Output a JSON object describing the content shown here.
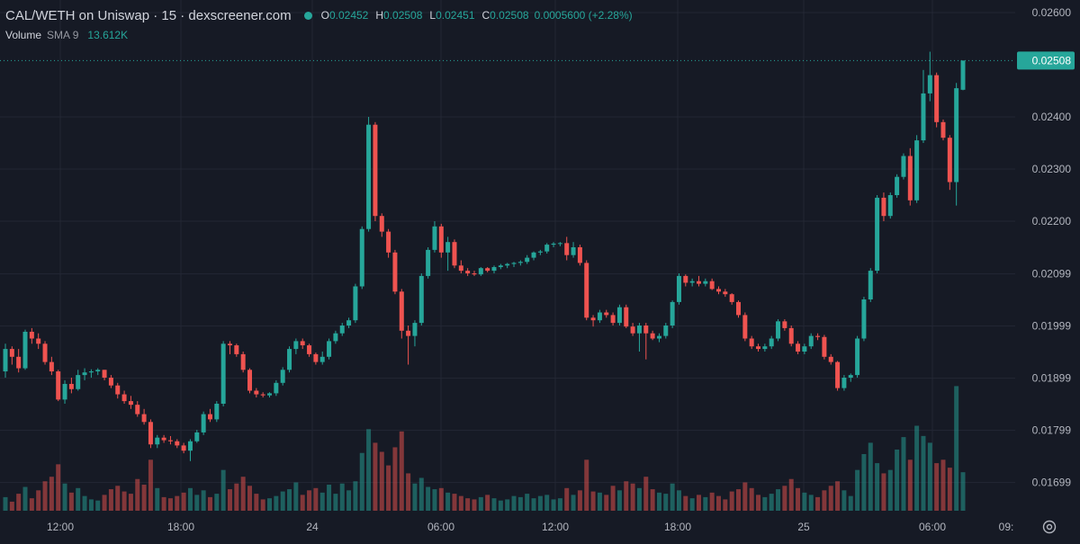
{
  "header": {
    "title": "CAL/WETH on Uniswap · 15 · dexscreener.com",
    "ohlc": {
      "o_label": "O",
      "o": "0.02452",
      "h_label": "H",
      "h": "0.02508",
      "l_label": "L",
      "l": "0.02451",
      "c_label": "C",
      "c": "0.02508",
      "change": "0.0005600 (+2.28%)"
    },
    "volume_label": "Volume",
    "sma_label": "SMA 9",
    "volume_value": "13.612K"
  },
  "colors": {
    "background": "#161a25",
    "up": "#26a69a",
    "down": "#ef5350",
    "grid": "#232734",
    "text": "#d1d4dc",
    "axis_text": "#b2b5be"
  },
  "chart_data": {
    "type": "candlestick",
    "price_axis": {
      "ticks": [
        "0.02600",
        "0.02400",
        "0.02300",
        "0.02200",
        "0.02099",
        "0.01999",
        "0.01899",
        "0.01799",
        "0.01699"
      ],
      "tick_values": [
        0.026,
        0.024,
        0.023,
        0.022,
        0.02099,
        0.01999,
        0.01899,
        0.01799,
        0.01699
      ],
      "last_price_label": "0.02508",
      "last_price": 0.02508
    },
    "time_axis": {
      "labels": [
        "12:00",
        "18:00",
        "24",
        "06:00",
        "12:00",
        "18:00",
        "25",
        "06:00",
        "09:"
      ]
    },
    "candles": [
      [
        0.01912,
        0.01965,
        0.019,
        0.01955,
        1.2
      ],
      [
        0.01955,
        0.0196,
        0.01925,
        0.0194,
        0.8
      ],
      [
        0.0194,
        0.01955,
        0.0191,
        0.01918,
        1.5
      ],
      [
        0.01918,
        0.01992,
        0.01915,
        0.01988,
        2.1
      ],
      [
        0.01988,
        0.01995,
        0.01965,
        0.01975,
        1.1
      ],
      [
        0.01975,
        0.01985,
        0.01955,
        0.01965,
        1.8
      ],
      [
        0.01965,
        0.0197,
        0.01925,
        0.0193,
        2.6
      ],
      [
        0.0193,
        0.0194,
        0.01905,
        0.01912,
        3.0
      ],
      [
        0.01912,
        0.01915,
        0.01855,
        0.01858,
        4.1
      ],
      [
        0.01858,
        0.01895,
        0.0185,
        0.01888,
        2.4
      ],
      [
        0.01888,
        0.019,
        0.0187,
        0.01878,
        1.6
      ],
      [
        0.01878,
        0.01915,
        0.01875,
        0.01905,
        2.0
      ],
      [
        0.01905,
        0.01918,
        0.01895,
        0.0191,
        1.3
      ],
      [
        0.0191,
        0.01916,
        0.019,
        0.01912,
        1.0
      ],
      [
        0.01912,
        0.01918,
        0.01905,
        0.01915,
        0.9
      ],
      [
        0.01915,
        0.01915,
        0.01895,
        0.019,
        1.4
      ],
      [
        0.019,
        0.01905,
        0.0188,
        0.01885,
        1.9
      ],
      [
        0.01885,
        0.0189,
        0.0186,
        0.01868,
        2.2
      ],
      [
        0.01868,
        0.01875,
        0.0185,
        0.01855,
        1.7
      ],
      [
        0.01855,
        0.01865,
        0.0184,
        0.01848,
        1.5
      ],
      [
        0.01848,
        0.01855,
        0.01825,
        0.0183,
        2.8
      ],
      [
        0.0183,
        0.0184,
        0.0181,
        0.01815,
        2.3
      ],
      [
        0.01815,
        0.0182,
        0.01765,
        0.01772,
        4.5
      ],
      [
        0.01772,
        0.0179,
        0.01765,
        0.01785,
        2.0
      ],
      [
        0.01785,
        0.0179,
        0.01775,
        0.0178,
        1.2
      ],
      [
        0.0178,
        0.01788,
        0.01772,
        0.01778,
        1.1
      ],
      [
        0.01778,
        0.01782,
        0.01765,
        0.0177,
        1.3
      ],
      [
        0.0177,
        0.01775,
        0.01755,
        0.0176,
        1.6
      ],
      [
        0.0176,
        0.01782,
        0.0174,
        0.01778,
        2.0
      ],
      [
        0.01778,
        0.018,
        0.01775,
        0.01795,
        1.4
      ],
      [
        0.01795,
        0.01835,
        0.0179,
        0.0183,
        1.8
      ],
      [
        0.0183,
        0.0184,
        0.01815,
        0.0182,
        1.2
      ],
      [
        0.0182,
        0.01855,
        0.01815,
        0.0185,
        1.5
      ],
      [
        0.0185,
        0.0197,
        0.01845,
        0.01965,
        3.6
      ],
      [
        0.01965,
        0.0197,
        0.01945,
        0.01962,
        1.9
      ],
      [
        0.01962,
        0.01965,
        0.0194,
        0.01945,
        2.4
      ],
      [
        0.01945,
        0.0195,
        0.0191,
        0.01915,
        3.0
      ],
      [
        0.01915,
        0.01918,
        0.0187,
        0.01875,
        2.2
      ],
      [
        0.01875,
        0.0188,
        0.01862,
        0.01868,
        1.5
      ],
      [
        0.01868,
        0.01872,
        0.01862,
        0.01866,
        1.0
      ],
      [
        0.01866,
        0.01872,
        0.01862,
        0.0187,
        1.1
      ],
      [
        0.0187,
        0.01895,
        0.01865,
        0.0189,
        1.3
      ],
      [
        0.0189,
        0.0192,
        0.01885,
        0.01915,
        1.7
      ],
      [
        0.01915,
        0.0196,
        0.0191,
        0.01955,
        1.9
      ],
      [
        0.01955,
        0.01975,
        0.01945,
        0.0197,
        2.5
      ],
      [
        0.0197,
        0.01975,
        0.01955,
        0.01962,
        1.4
      ],
      [
        0.01962,
        0.01965,
        0.0194,
        0.01945,
        1.8
      ],
      [
        0.01945,
        0.01948,
        0.01925,
        0.0193,
        2.0
      ],
      [
        0.0193,
        0.0195,
        0.01925,
        0.0194,
        1.6
      ],
      [
        0.0194,
        0.01975,
        0.01935,
        0.0197,
        2.3
      ],
      [
        0.0197,
        0.0199,
        0.01965,
        0.01985,
        1.5
      ],
      [
        0.01985,
        0.02005,
        0.0198,
        0.02,
        2.4
      ],
      [
        0.02,
        0.02015,
        0.01995,
        0.0201,
        1.8
      ],
      [
        0.0201,
        0.0208,
        0.02005,
        0.02075,
        2.6
      ],
      [
        0.02075,
        0.0219,
        0.0207,
        0.02185,
        5.1
      ],
      [
        0.02185,
        0.024,
        0.0218,
        0.02385,
        7.2
      ],
      [
        0.02385,
        0.0239,
        0.022,
        0.0221,
        6.0
      ],
      [
        0.0221,
        0.02215,
        0.0217,
        0.0218,
        5.2
      ],
      [
        0.0218,
        0.02185,
        0.0213,
        0.0214,
        4.0
      ],
      [
        0.0214,
        0.02145,
        0.0206,
        0.02065,
        5.6
      ],
      [
        0.02065,
        0.0207,
        0.01975,
        0.0199,
        7.0
      ],
      [
        0.0199,
        0.02,
        0.01925,
        0.0198,
        3.3
      ],
      [
        0.0198,
        0.0201,
        0.0196,
        0.02005,
        2.4
      ],
      [
        0.02005,
        0.021,
        0.02,
        0.02095,
        2.9
      ],
      [
        0.02095,
        0.0215,
        0.0209,
        0.02145,
        2.1
      ],
      [
        0.02145,
        0.022,
        0.0214,
        0.0219,
        1.9
      ],
      [
        0.0219,
        0.02195,
        0.0213,
        0.0214,
        2.0
      ],
      [
        0.0214,
        0.0217,
        0.02105,
        0.0216,
        1.6
      ],
      [
        0.0216,
        0.02165,
        0.0211,
        0.02115,
        1.5
      ],
      [
        0.02115,
        0.02125,
        0.021,
        0.02105,
        1.3
      ],
      [
        0.02105,
        0.0211,
        0.02095,
        0.021,
        1.1
      ],
      [
        0.021,
        0.02105,
        0.02095,
        0.02098,
        1.0
      ],
      [
        0.02098,
        0.02112,
        0.02095,
        0.0211,
        1.2
      ],
      [
        0.0211,
        0.02112,
        0.02102,
        0.02105,
        1.4
      ],
      [
        0.02105,
        0.02115,
        0.021,
        0.02112,
        1.1
      ],
      [
        0.02112,
        0.02118,
        0.02108,
        0.02115,
        0.9
      ],
      [
        0.02115,
        0.0212,
        0.0211,
        0.02118,
        1.0
      ],
      [
        0.02118,
        0.02122,
        0.02112,
        0.0212,
        1.3
      ],
      [
        0.0212,
        0.02125,
        0.02115,
        0.02122,
        1.2
      ],
      [
        0.02122,
        0.02135,
        0.02118,
        0.0213,
        1.5
      ],
      [
        0.0213,
        0.02142,
        0.02125,
        0.0214,
        1.1
      ],
      [
        0.0214,
        0.02145,
        0.02135,
        0.02142,
        1.3
      ],
      [
        0.02142,
        0.02158,
        0.02138,
        0.02155,
        1.4
      ],
      [
        0.02155,
        0.0216,
        0.0215,
        0.02157,
        1.0
      ],
      [
        0.02157,
        0.0216,
        0.02152,
        0.02158,
        1.1
      ],
      [
        0.02158,
        0.0217,
        0.02125,
        0.02135,
        2.0
      ],
      [
        0.02135,
        0.0216,
        0.0213,
        0.0215,
        1.4
      ],
      [
        0.0215,
        0.02155,
        0.02115,
        0.0212,
        1.8
      ],
      [
        0.0212,
        0.02125,
        0.0201,
        0.02015,
        4.5
      ],
      [
        0.02015,
        0.0202,
        0.01998,
        0.0201,
        1.7
      ],
      [
        0.0201,
        0.0203,
        0.02005,
        0.02025,
        1.6
      ],
      [
        0.02025,
        0.0203,
        0.02015,
        0.0202,
        1.4
      ],
      [
        0.0202,
        0.02025,
        0.02,
        0.02005,
        2.2
      ],
      [
        0.02005,
        0.0204,
        0.02,
        0.02035,
        1.8
      ],
      [
        0.02035,
        0.0204,
        0.01995,
        0.01998,
        2.6
      ],
      [
        0.01998,
        0.02005,
        0.0198,
        0.01985,
        2.4
      ],
      [
        0.01985,
        0.02005,
        0.0195,
        0.02,
        2.0
      ],
      [
        0.02,
        0.02005,
        0.01935,
        0.01985,
        3.0
      ],
      [
        0.01985,
        0.0199,
        0.01972,
        0.01975,
        1.9
      ],
      [
        0.01975,
        0.01985,
        0.01968,
        0.0198,
        1.6
      ],
      [
        0.0198,
        0.02005,
        0.01975,
        0.02,
        1.5
      ],
      [
        0.02,
        0.02048,
        0.01995,
        0.02045,
        2.4
      ],
      [
        0.02045,
        0.021,
        0.0204,
        0.02095,
        1.8
      ],
      [
        0.02095,
        0.02098,
        0.02075,
        0.02082,
        1.3
      ],
      [
        0.02082,
        0.0209,
        0.02075,
        0.02085,
        1.1
      ],
      [
        0.02085,
        0.02095,
        0.02075,
        0.0208,
        1.4
      ],
      [
        0.0208,
        0.0209,
        0.02075,
        0.02085,
        1.2
      ],
      [
        0.02085,
        0.0209,
        0.02068,
        0.0207,
        1.6
      ],
      [
        0.0207,
        0.02075,
        0.0206,
        0.02065,
        1.3
      ],
      [
        0.02065,
        0.0207,
        0.02055,
        0.0206,
        1.0
      ],
      [
        0.0206,
        0.02062,
        0.0204,
        0.02045,
        1.7
      ],
      [
        0.02045,
        0.02048,
        0.02015,
        0.0202,
        1.9
      ],
      [
        0.0202,
        0.02025,
        0.0197,
        0.01975,
        2.5
      ],
      [
        0.01975,
        0.0198,
        0.01955,
        0.0196,
        2.0
      ],
      [
        0.0196,
        0.01965,
        0.0195,
        0.01955,
        1.4
      ],
      [
        0.01955,
        0.01965,
        0.0195,
        0.0196,
        1.2
      ],
      [
        0.0196,
        0.0198,
        0.01955,
        0.01975,
        1.5
      ],
      [
        0.01975,
        0.02012,
        0.0197,
        0.02008,
        1.9
      ],
      [
        0.02008,
        0.02012,
        0.0199,
        0.01995,
        2.2
      ],
      [
        0.01995,
        0.02,
        0.0196,
        0.01965,
        2.8
      ],
      [
        0.01965,
        0.0197,
        0.01945,
        0.0195,
        2.0
      ],
      [
        0.0195,
        0.01965,
        0.01945,
        0.0196,
        1.6
      ],
      [
        0.0196,
        0.01985,
        0.01955,
        0.0198,
        1.4
      ],
      [
        0.0198,
        0.01985,
        0.01972,
        0.01978,
        1.2
      ],
      [
        0.01978,
        0.01982,
        0.01935,
        0.0194,
        1.8
      ],
      [
        0.0194,
        0.01945,
        0.01925,
        0.0193,
        2.2
      ],
      [
        0.0193,
        0.01932,
        0.01875,
        0.0188,
        2.6
      ],
      [
        0.0188,
        0.01905,
        0.01875,
        0.019,
        1.8
      ],
      [
        0.019,
        0.01908,
        0.01892,
        0.01905,
        1.3
      ],
      [
        0.01905,
        0.0198,
        0.019,
        0.01975,
        3.6
      ],
      [
        0.01975,
        0.02055,
        0.0197,
        0.0205,
        5.0
      ],
      [
        0.0205,
        0.0211,
        0.02045,
        0.02105,
        6.0
      ],
      [
        0.02105,
        0.0225,
        0.021,
        0.02245,
        4.2
      ],
      [
        0.02245,
        0.02255,
        0.022,
        0.0221,
        3.3
      ],
      [
        0.0221,
        0.02255,
        0.02205,
        0.0225,
        3.6
      ],
      [
        0.0225,
        0.0229,
        0.02245,
        0.02285,
        5.4
      ],
      [
        0.02285,
        0.0233,
        0.0228,
        0.02325,
        6.5
      ],
      [
        0.02325,
        0.0234,
        0.0223,
        0.0224,
        4.5
      ],
      [
        0.0224,
        0.02365,
        0.02235,
        0.02355,
        7.5
      ],
      [
        0.02355,
        0.0249,
        0.0235,
        0.02445,
        6.6
      ],
      [
        0.02445,
        0.02525,
        0.0243,
        0.0248,
        6.0
      ],
      [
        0.0248,
        0.02485,
        0.0238,
        0.0239,
        4.2
      ],
      [
        0.0239,
        0.02395,
        0.02355,
        0.0236,
        4.5
      ],
      [
        0.0236,
        0.02365,
        0.0226,
        0.02275,
        3.8
      ],
      [
        0.02275,
        0.02465,
        0.0223,
        0.02455,
        11.0
      ],
      [
        0.02452,
        0.02508,
        0.02451,
        0.02508,
        3.4
      ]
    ]
  }
}
